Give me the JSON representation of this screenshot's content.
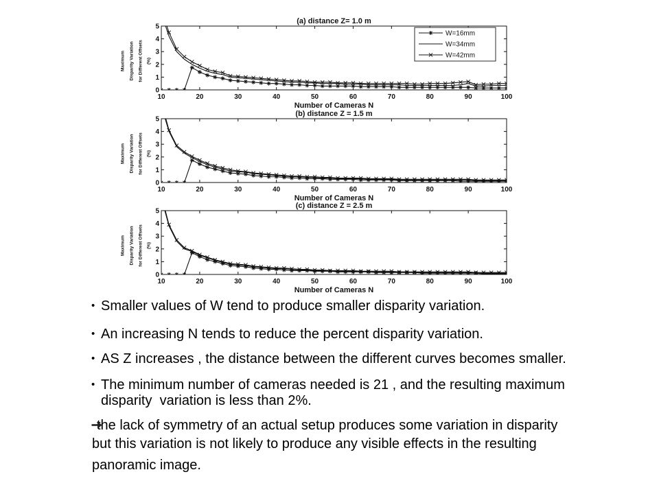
{
  "colors": {
    "ink": "#111111",
    "background": "#ffffff"
  },
  "chart_data": [
    {
      "type": "line",
      "title": "(a) distance Z= 1.0 m",
      "xlabel": "Number of Cameras N",
      "ylabel": [
        "Maximum",
        "Disparity Variation",
        "for Different Offsets",
        "(%)"
      ],
      "xlim": [
        10,
        100
      ],
      "ylim": [
        0,
        5
      ],
      "xticks": [
        10,
        20,
        30,
        40,
        50,
        60,
        70,
        80,
        90,
        100
      ],
      "yticks": [
        0,
        1,
        2,
        3,
        4,
        5
      ],
      "grid": false,
      "legend": "top-right",
      "x": [
        10,
        12,
        14,
        16,
        18,
        20,
        22,
        24,
        26,
        28,
        30,
        32,
        34,
        36,
        38,
        40,
        42,
        44,
        46,
        48,
        50,
        52,
        54,
        56,
        58,
        60,
        62,
        64,
        66,
        68,
        70,
        72,
        74,
        76,
        78,
        80,
        82,
        84,
        86,
        88,
        90,
        92,
        94,
        96,
        98,
        100
      ],
      "series": [
        {
          "name": "W=16mm",
          "marker": "asterisk",
          "values": [
            0,
            0,
            0,
            0,
            1.75,
            1.4,
            1.15,
            1.0,
            0.9,
            0.75,
            0.7,
            0.65,
            0.6,
            0.55,
            0.5,
            0.5,
            0.45,
            0.4,
            0.4,
            0.35,
            0.35,
            0.3,
            0.3,
            0.3,
            0.3,
            0.3,
            0.25,
            0.25,
            0.25,
            0.25,
            0.25,
            0.2,
            0.2,
            0.2,
            0.2,
            0.2,
            0.2,
            0.2,
            0.2,
            0.2,
            0.2,
            0.15,
            0.15,
            0.15,
            0.15,
            0.15
          ]
        },
        {
          "name": "W=34mm",
          "marker": "none",
          "values": [
            6.0,
            4.2,
            3.0,
            2.4,
            2.0,
            1.7,
            1.45,
            1.3,
            1.2,
            1.0,
            0.95,
            0.9,
            0.85,
            0.8,
            0.75,
            0.7,
            0.65,
            0.6,
            0.6,
            0.55,
            0.55,
            0.5,
            0.5,
            0.5,
            0.45,
            0.45,
            0.45,
            0.4,
            0.4,
            0.4,
            0.4,
            0.4,
            0.35,
            0.35,
            0.35,
            0.35,
            0.35,
            0.35,
            0.35,
            0.4,
            0.5,
            0.3,
            0.3,
            0.35,
            0.35,
            0.35
          ]
        },
        {
          "name": "W=42mm",
          "marker": "x",
          "values": [
            6.3,
            4.5,
            3.2,
            2.6,
            2.2,
            1.9,
            1.6,
            1.45,
            1.35,
            1.1,
            1.05,
            1.0,
            0.95,
            0.9,
            0.85,
            0.8,
            0.75,
            0.7,
            0.7,
            0.65,
            0.6,
            0.6,
            0.6,
            0.55,
            0.55,
            0.55,
            0.5,
            0.5,
            0.5,
            0.5,
            0.5,
            0.5,
            0.5,
            0.45,
            0.45,
            0.5,
            0.5,
            0.5,
            0.55,
            0.6,
            0.65,
            0.4,
            0.45,
            0.45,
            0.5,
            0.5
          ]
        }
      ]
    },
    {
      "type": "line",
      "title": "(b) distance Z = 1.5 m",
      "xlabel": "Number of Cameras N",
      "ylabel": [
        "Maximum",
        "Disparity Variation",
        "for Different Offsets",
        "(%)"
      ],
      "xlim": [
        10,
        100
      ],
      "ylim": [
        0,
        5
      ],
      "xticks": [
        10,
        20,
        30,
        40,
        50,
        60,
        70,
        80,
        90,
        100
      ],
      "yticks": [
        0,
        1,
        2,
        3,
        4,
        5
      ],
      "grid": false,
      "legend": "none",
      "x": [
        10,
        12,
        14,
        16,
        18,
        20,
        22,
        24,
        26,
        28,
        30,
        32,
        34,
        36,
        38,
        40,
        42,
        44,
        46,
        48,
        50,
        52,
        54,
        56,
        58,
        60,
        62,
        64,
        66,
        68,
        70,
        72,
        74,
        76,
        78,
        80,
        82,
        84,
        86,
        88,
        90,
        92,
        94,
        96,
        98,
        100
      ],
      "series": [
        {
          "marker": "asterisk",
          "values": [
            0,
            0,
            0,
            0,
            1.75,
            1.45,
            1.2,
            1.05,
            0.9,
            0.75,
            0.7,
            0.65,
            0.55,
            0.5,
            0.45,
            0.45,
            0.4,
            0.35,
            0.35,
            0.3,
            0.3,
            0.3,
            0.25,
            0.25,
            0.25,
            0.25,
            0.2,
            0.2,
            0.2,
            0.2,
            0.2,
            0.15,
            0.15,
            0.15,
            0.15,
            0.15,
            0.15,
            0.15,
            0.15,
            0.1,
            0.1,
            0.1,
            0.1,
            0.1,
            0.1,
            0.1
          ]
        },
        {
          "marker": "none",
          "values": [
            6.0,
            4.0,
            2.8,
            2.3,
            1.95,
            1.65,
            1.4,
            1.2,
            1.05,
            0.9,
            0.85,
            0.8,
            0.7,
            0.65,
            0.6,
            0.55,
            0.5,
            0.45,
            0.45,
            0.4,
            0.4,
            0.35,
            0.35,
            0.3,
            0.3,
            0.3,
            0.3,
            0.25,
            0.25,
            0.25,
            0.25,
            0.2,
            0.2,
            0.2,
            0.2,
            0.2,
            0.2,
            0.2,
            0.2,
            0.2,
            0.2,
            0.15,
            0.15,
            0.15,
            0.15,
            0.15
          ]
        },
        {
          "marker": "x",
          "values": [
            6.3,
            4.1,
            2.9,
            2.4,
            2.05,
            1.75,
            1.5,
            1.3,
            1.15,
            1.0,
            0.9,
            0.85,
            0.75,
            0.7,
            0.65,
            0.6,
            0.55,
            0.5,
            0.5,
            0.45,
            0.45,
            0.4,
            0.4,
            0.35,
            0.35,
            0.35,
            0.35,
            0.3,
            0.3,
            0.3,
            0.3,
            0.25,
            0.25,
            0.25,
            0.25,
            0.25,
            0.25,
            0.25,
            0.25,
            0.25,
            0.25,
            0.2,
            0.2,
            0.2,
            0.2,
            0.2
          ]
        }
      ]
    },
    {
      "type": "line",
      "title": "(c) distance Z = 2.5 m",
      "xlabel": "Number of Cameras N",
      "ylabel": [
        "Maximum",
        "Disparity Variation",
        "for Different Offsets",
        "(%)"
      ],
      "xlim": [
        10,
        100
      ],
      "ylim": [
        0,
        5
      ],
      "xticks": [
        10,
        20,
        30,
        40,
        50,
        60,
        70,
        80,
        90,
        100
      ],
      "yticks": [
        0,
        1,
        2,
        3,
        4,
        5
      ],
      "grid": false,
      "legend": "none",
      "x": [
        10,
        12,
        14,
        16,
        18,
        20,
        22,
        24,
        26,
        28,
        30,
        32,
        34,
        36,
        38,
        40,
        42,
        44,
        46,
        48,
        50,
        52,
        54,
        56,
        58,
        60,
        62,
        64,
        66,
        68,
        70,
        72,
        74,
        76,
        78,
        80,
        82,
        84,
        86,
        88,
        90,
        92,
        94,
        96,
        98,
        100
      ],
      "series": [
        {
          "marker": "asterisk",
          "values": [
            0,
            0,
            0,
            0,
            1.7,
            1.4,
            1.15,
            1.0,
            0.85,
            0.7,
            0.65,
            0.6,
            0.5,
            0.45,
            0.4,
            0.4,
            0.35,
            0.3,
            0.3,
            0.3,
            0.25,
            0.25,
            0.25,
            0.2,
            0.2,
            0.2,
            0.2,
            0.2,
            0.15,
            0.15,
            0.15,
            0.15,
            0.15,
            0.15,
            0.1,
            0.1,
            0.1,
            0.1,
            0.1,
            0.1,
            0.1,
            0.1,
            0.05,
            0.05,
            0.05,
            0.05
          ]
        },
        {
          "marker": "none",
          "values": [
            6.0,
            3.8,
            2.6,
            2.0,
            1.8,
            1.5,
            1.3,
            1.1,
            0.95,
            0.8,
            0.75,
            0.7,
            0.6,
            0.55,
            0.5,
            0.45,
            0.45,
            0.4,
            0.35,
            0.35,
            0.3,
            0.3,
            0.3,
            0.25,
            0.25,
            0.25,
            0.25,
            0.2,
            0.2,
            0.2,
            0.2,
            0.2,
            0.2,
            0.15,
            0.15,
            0.15,
            0.15,
            0.15,
            0.15,
            0.15,
            0.15,
            0.1,
            0.1,
            0.1,
            0.1,
            0.1
          ]
        },
        {
          "marker": "x",
          "values": [
            6.2,
            3.9,
            2.7,
            2.1,
            1.85,
            1.55,
            1.35,
            1.15,
            1.0,
            0.85,
            0.8,
            0.75,
            0.65,
            0.6,
            0.55,
            0.5,
            0.5,
            0.45,
            0.4,
            0.4,
            0.35,
            0.35,
            0.3,
            0.3,
            0.3,
            0.3,
            0.25,
            0.25,
            0.25,
            0.25,
            0.25,
            0.2,
            0.2,
            0.2,
            0.2,
            0.2,
            0.2,
            0.2,
            0.2,
            0.2,
            0.2,
            0.15,
            0.15,
            0.15,
            0.15,
            0.15
          ]
        }
      ]
    }
  ],
  "slide": {
    "bullets": [
      {
        "symbol": "•",
        "lines": [
          "Smaller values of W tend to produce smaller disparity variation."
        ]
      },
      {
        "symbol": "•",
        "lines": [
          "An increasing N tends to reduce the percent disparity variation."
        ]
      },
      {
        "symbol": "•",
        "lines": [
          "AS Z increases , the distance between the different curves becomes smaller."
        ]
      },
      {
        "symbol": "•",
        "lines": [
          "The minimum number of cameras needed is 21 , and the resulting maximum",
          "disparity  variation is less than 2%."
        ]
      }
    ],
    "note": {
      "icon": "right-arrow-icon",
      "lines": [
        "the lack of symmetry of an actual setup produces some variation in disparity",
        "but this variation is not likely to produce any visible effects in the resulting",
        "panoramic image."
      ]
    }
  }
}
